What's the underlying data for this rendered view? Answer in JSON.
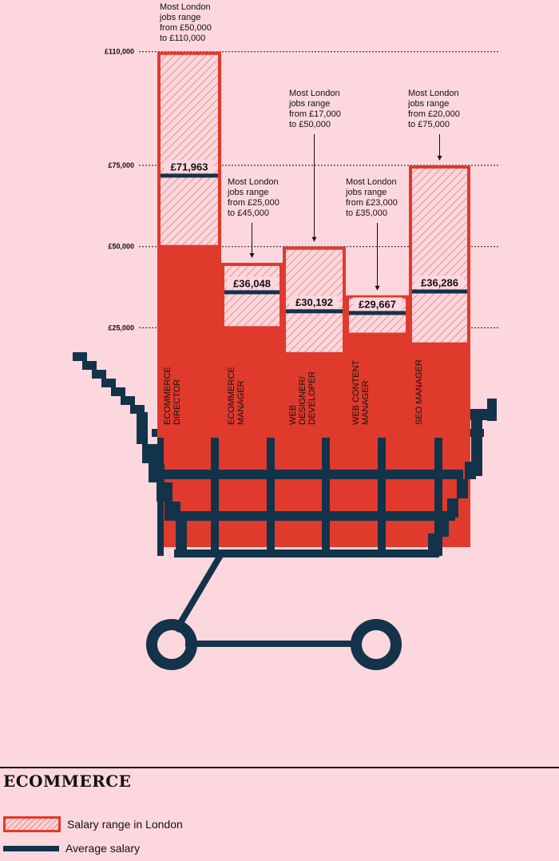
{
  "colors": {
    "background": "#fdd7de",
    "red": "#e03a2c",
    "hatch": "#f4a4a4",
    "navy": "#12334a"
  },
  "chart_data": {
    "type": "bar",
    "y_ticks": [
      {
        "value": 110000,
        "label": "£110,000"
      },
      {
        "value": 75000,
        "label": "£75,000"
      },
      {
        "value": 50000,
        "label": "£50,000"
      },
      {
        "value": 25000,
        "label": "£25,000"
      }
    ],
    "categories": [
      {
        "name": "ECOMMERCE DIRECTOR",
        "lines": [
          "ECOMMERCE",
          "DIRECTOR"
        ],
        "range_low": 50000,
        "range_high": 110000,
        "average": 71963,
        "average_label": "£71,963",
        "note": [
          "Most London",
          "jobs range",
          "from £50,000",
          "to £110,000"
        ]
      },
      {
        "name": "ECOMMERCE MANAGER",
        "lines": [
          "ECOMMERCE",
          "MANAGER"
        ],
        "range_low": 25000,
        "range_high": 45000,
        "average": 36048,
        "average_label": "£36,048",
        "note": [
          "Most London",
          "jobs range",
          "from £25,000",
          "to £45,000"
        ]
      },
      {
        "name": "WEB DESIGNER/ DEVELOPER",
        "lines": [
          "WEB",
          "DESIGNER/",
          "DEVELOPER"
        ],
        "range_low": 17000,
        "range_high": 50000,
        "average": 30192,
        "average_label": "£30,192",
        "note": [
          "Most London",
          "jobs range",
          "from £17,000",
          "to £50,000"
        ]
      },
      {
        "name": "WEB CONTENT MANAGER",
        "lines": [
          "WEB CONTENT",
          "MANAGER"
        ],
        "range_low": 23000,
        "range_high": 35000,
        "average": 29667,
        "average_label": "£29,667",
        "note": [
          "Most London",
          "jobs range",
          "from £23,000",
          "to £35,000"
        ]
      },
      {
        "name": "SEO MANAGER",
        "lines": [
          "SEO MANAGER"
        ],
        "range_low": 20000,
        "range_high": 75000,
        "average": 36286,
        "average_label": "£36,286",
        "note": [
          "Most London",
          "jobs range",
          "from £20,000",
          "to £75,000"
        ]
      }
    ]
  },
  "legend": {
    "heading": "ECOMMERCE",
    "range_label": "Salary range in London",
    "average_label": "Average salary"
  }
}
